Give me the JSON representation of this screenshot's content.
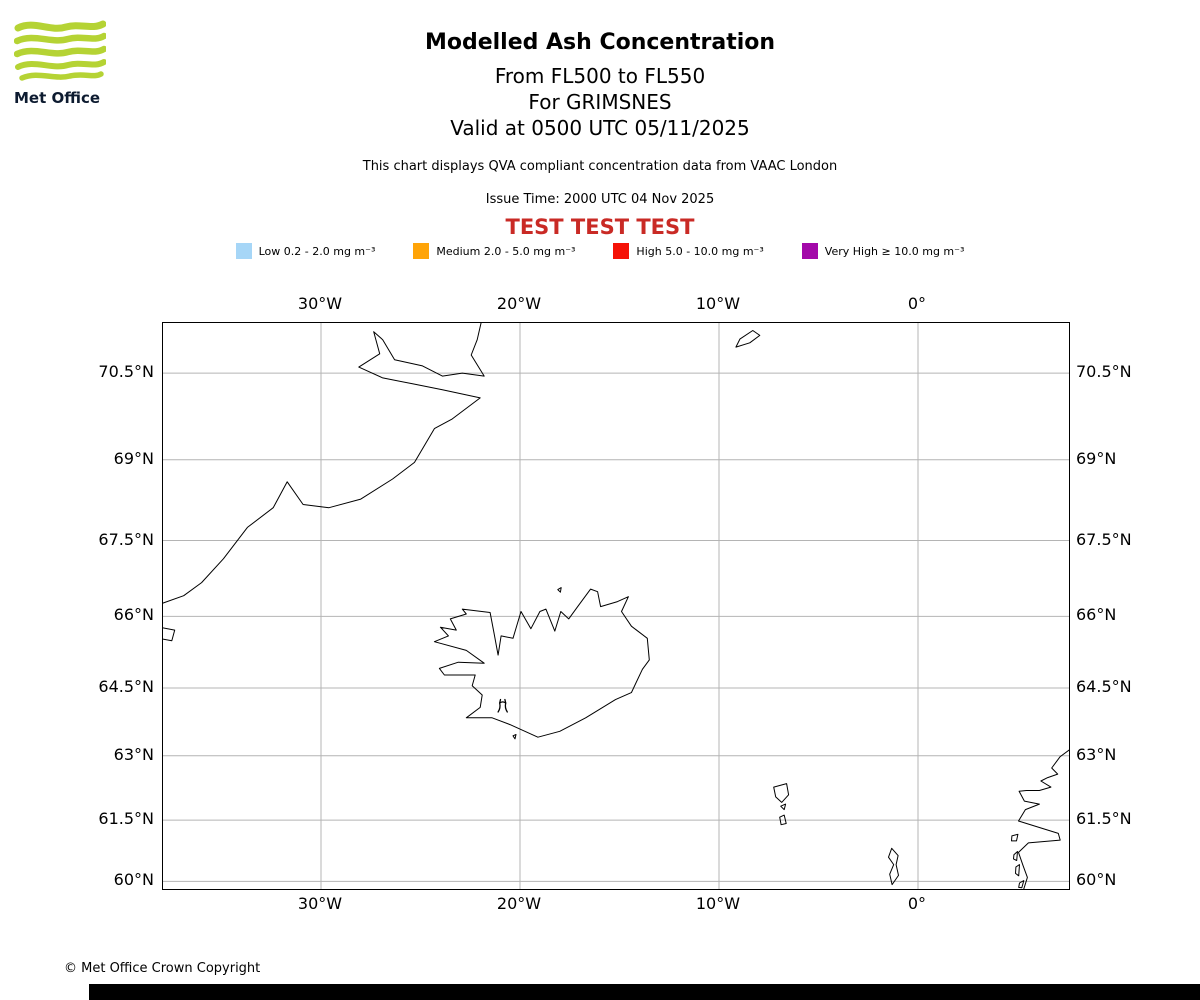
{
  "header": {
    "logo": {
      "text": "Met Office",
      "green": "#b5d334",
      "navy": "#0d1b30"
    },
    "title": "Modelled Ash Concentration",
    "flight_level": "From FL500 to FL550",
    "volcano_line": "For GRIMSNES",
    "valid_line": "Valid at 0500 UTC 05/11/2025",
    "description": "This chart displays QVA compliant concentration data from VAAC London",
    "issue_time": "Issue Time: 2000 UTC 04 Nov 2025",
    "test_banner": {
      "text": "TEST TEST TEST",
      "color": "#c92a25"
    }
  },
  "legend": {
    "items": [
      {
        "label": "Low 0.2 - 2.0 mg m⁻³",
        "color": "#a6d6f7"
      },
      {
        "label": "Medium 2.0 - 5.0 mg m⁻³",
        "color": "#ffa408"
      },
      {
        "label": "High 5.0 - 10.0 mg m⁻³",
        "color": "#f51207"
      },
      {
        "label": "Very High ≥ 10.0 mg m⁻³",
        "color": "#a309a9"
      }
    ]
  },
  "map": {
    "bounds": {
      "lon_min": -37.94,
      "lon_max": 7.59,
      "lat_min": 59.81,
      "lat_max": 71.32
    },
    "lon_ticks": [
      {
        "label": "30°W",
        "value": -30
      },
      {
        "label": "20°W",
        "value": -20
      },
      {
        "label": "10°W",
        "value": -10
      },
      {
        "label": "0°",
        "value": 0
      }
    ],
    "lat_ticks": [
      {
        "label": "70.5°N",
        "value": 70.5
      },
      {
        "label": "69°N",
        "value": 69
      },
      {
        "label": "67.5°N",
        "value": 67.5
      },
      {
        "label": "66°N",
        "value": 66
      },
      {
        "label": "64.5°N",
        "value": 64.5
      },
      {
        "label": "63°N",
        "value": 63
      },
      {
        "label": "61.5°N",
        "value": 61.5
      },
      {
        "label": "60°N",
        "value": 60
      }
    ],
    "grid_color": "#b4b4b4",
    "coast_color": "#000000",
    "volcano": {
      "name": "GRIMSNES",
      "lon": -20.87,
      "lat": 64.12
    }
  },
  "footer": {
    "copyright": "© Met Office Crown Copyright"
  }
}
